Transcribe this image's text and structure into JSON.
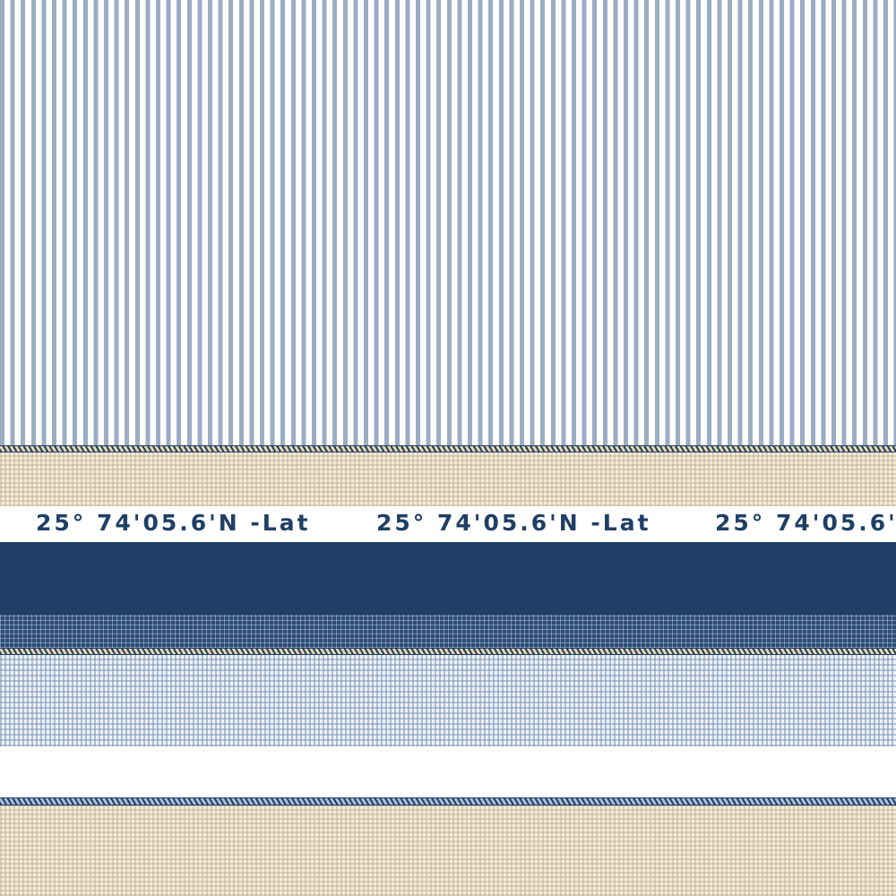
{
  "pattern": {
    "coordinate_text": "25° 74'05.6'N -Lat",
    "colors": {
      "navy": "#1f3f66",
      "stripe_blue": "#9badc3",
      "beige": "#c8b48c",
      "light_blue": "#7894b4",
      "white": "#ffffff"
    }
  }
}
